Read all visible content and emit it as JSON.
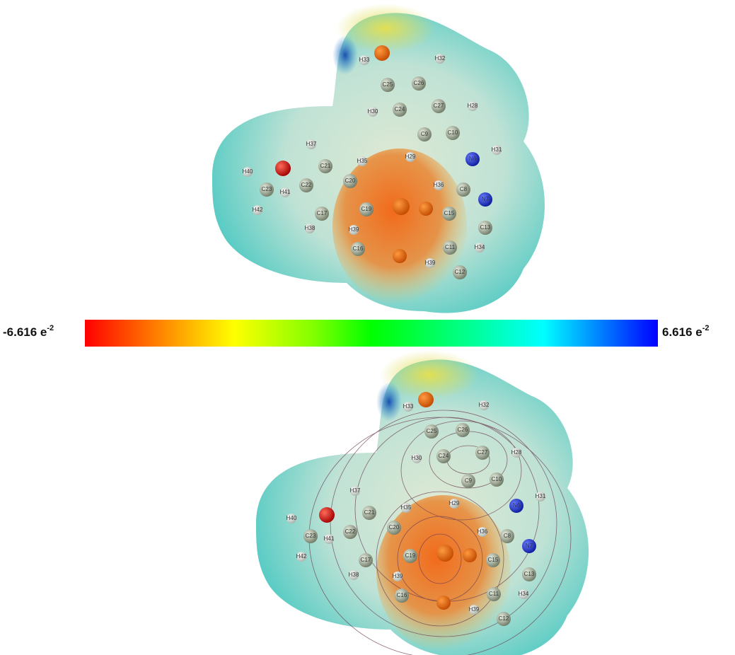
{
  "colorbar": {
    "left": {
      "mantissa": "-6.616 e",
      "exponent": "-2"
    },
    "right": {
      "mantissa": "6.616 e",
      "exponent": "-2"
    }
  },
  "top_molecule": {
    "atom_labels": [
      "H33",
      "H32",
      "C25",
      "C26",
      "H30",
      "C24",
      "C27",
      "H28",
      "C9",
      "C10",
      "H29",
      "N6",
      "H31",
      "C8",
      "N7",
      "H36",
      "H40",
      "C23",
      "H41",
      "H42",
      "C22",
      "C21",
      "H37",
      "H35",
      "C20",
      "C17",
      "H38",
      "C19",
      "H39",
      "C16",
      "C15",
      "C11",
      "C13",
      "H34",
      "C12",
      "H39"
    ]
  },
  "bottom_molecule": {
    "atom_labels": [
      "H33",
      "H32",
      "C25",
      "C26",
      "H30",
      "C24",
      "C27",
      "H28",
      "C9",
      "C10",
      "H29",
      "N6",
      "H31",
      "C8",
      "N7",
      "H36",
      "H40",
      "C23",
      "H41",
      "H42",
      "C22",
      "C21",
      "H37",
      "H35",
      "C20",
      "C17",
      "H38",
      "C19",
      "H39",
      "C16",
      "C15",
      "C11",
      "C13",
      "H34",
      "C12",
      "H39"
    ]
  }
}
